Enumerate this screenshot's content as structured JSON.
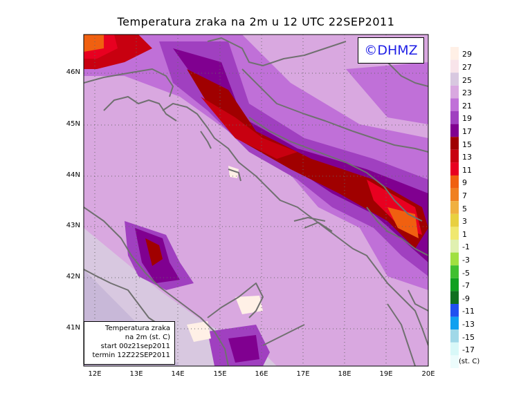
{
  "title": "Temperatura zraka na 2m u 12 UTC 22SEP2011",
  "copyright": "©DHMZ",
  "info": {
    "line1": "Temperatura zraka",
    "line2": "na 2m (st. C)",
    "line3": "start 00z21sep2011",
    "line4": "termin 12Z22SEP2011"
  },
  "x_ticks": [
    "12E",
    "13E",
    "14E",
    "15E",
    "16E",
    "17E",
    "18E",
    "19E",
    "20E"
  ],
  "y_ticks": [
    "46N",
    "45N",
    "44N",
    "43N",
    "42N",
    "41N"
  ],
  "legend": {
    "labels": [
      "29",
      "27",
      "25",
      "23",
      "21",
      "19",
      "17",
      "15",
      "13",
      "11",
      "9",
      "7",
      "5",
      "3",
      "1",
      "-1",
      "-3",
      "-5",
      "-7",
      "-9",
      "-11",
      "-13",
      "-15",
      "-17"
    ],
    "colors": [
      "#fff0e6",
      "#f8e4ea",
      "#d8c8e0",
      "#d9a8e0",
      "#c070d8",
      "#a040c0",
      "#800090",
      "#a00000",
      "#c80010",
      "#e80020",
      "#f06010",
      "#f08020",
      "#f0b040",
      "#e8d040",
      "#f0e870",
      "#e0f0b0",
      "#a0e040",
      "#40c030",
      "#10a020",
      "#107020",
      "#2050f0",
      "#10a0f0",
      "#a0d8e8",
      "#d8f8f8",
      "#ecfcfc"
    ],
    "unit": "(st. C)"
  }
}
